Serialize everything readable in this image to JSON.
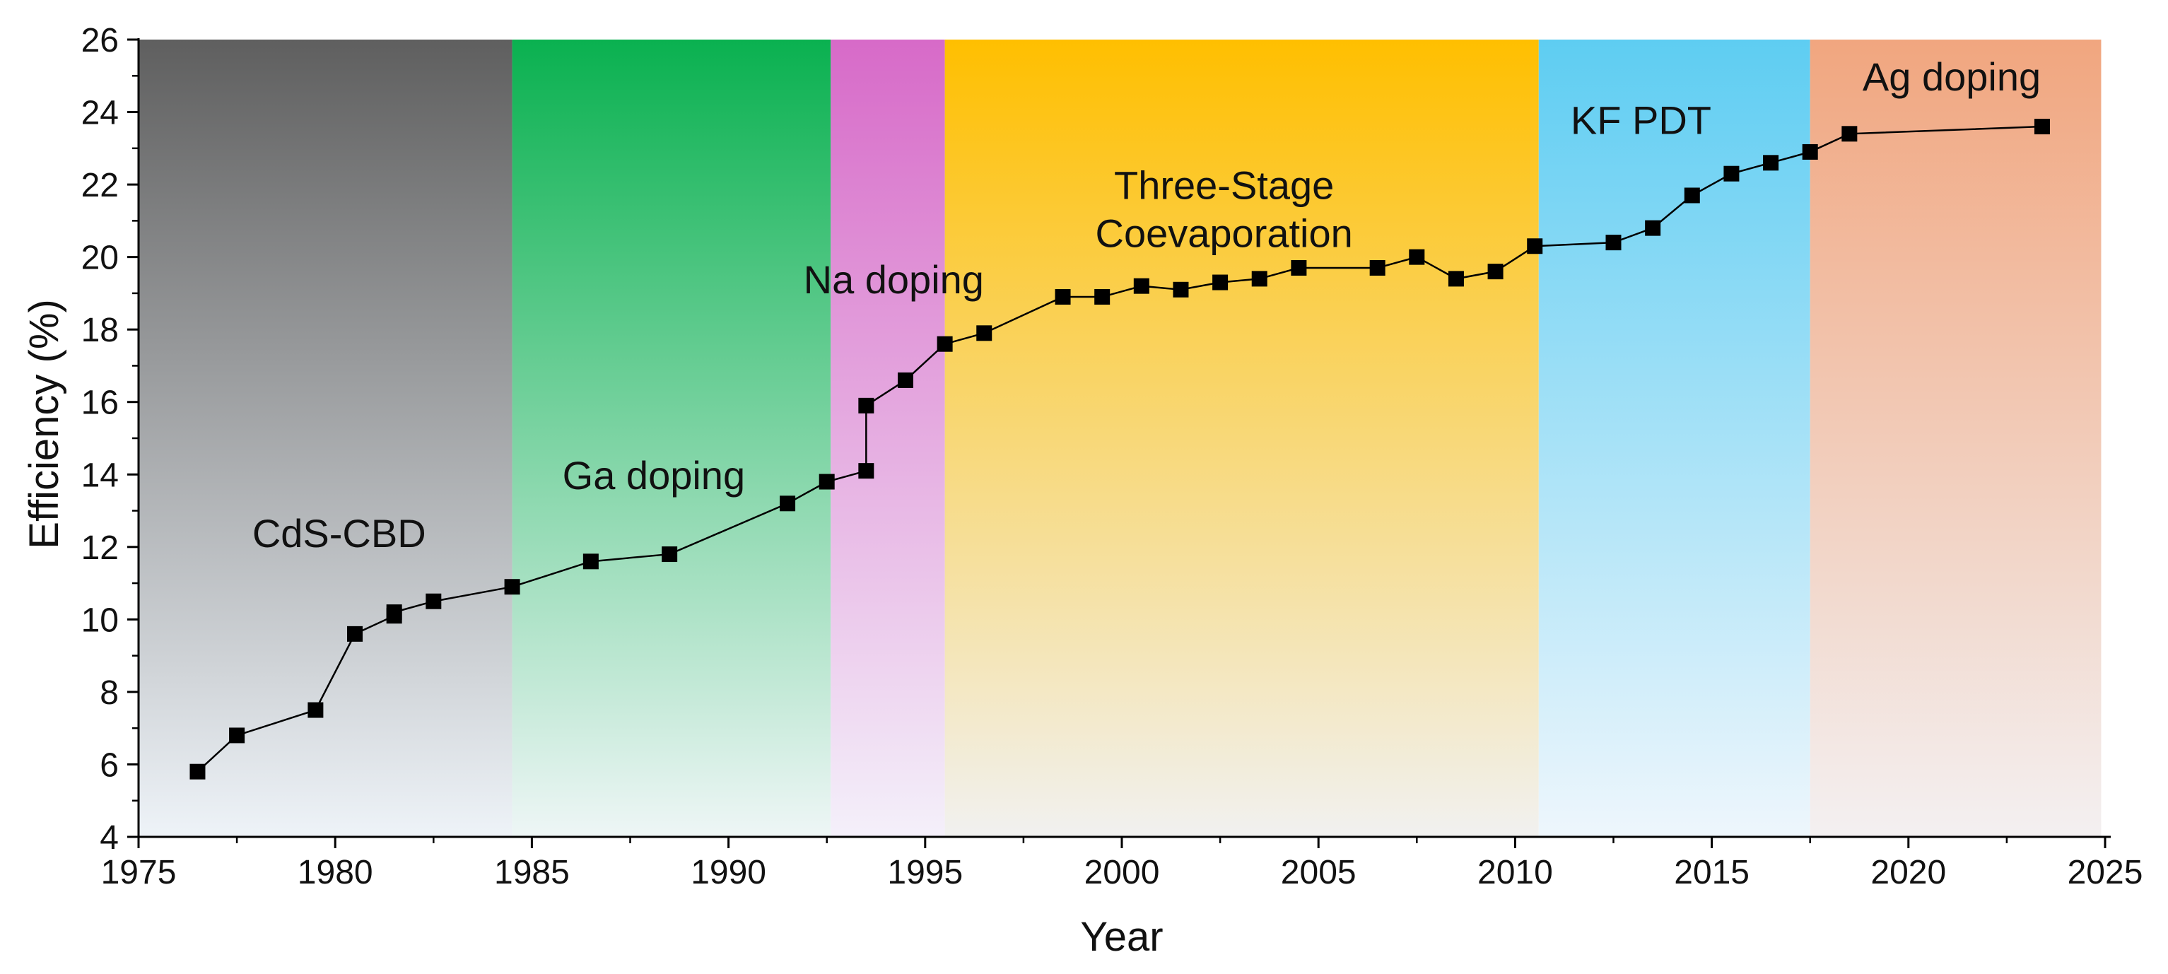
{
  "chart_data": {
    "type": "line",
    "xlabel": "Year",
    "ylabel": "Efficiency (%)",
    "xlim": [
      1975,
      2025
    ],
    "ylim": [
      4,
      26
    ],
    "x_ticks": [
      1975,
      1980,
      1985,
      1990,
      1995,
      2000,
      2005,
      2010,
      2015,
      2020,
      2025
    ],
    "y_ticks": [
      4,
      6,
      8,
      10,
      12,
      14,
      16,
      18,
      20,
      22,
      24,
      26
    ],
    "marker": "square",
    "line_color": "#000000",
    "regions": [
      {
        "label": "CdS-CBD",
        "x_start": 1975,
        "x_end": 1984.5,
        "color_top": "#5f5f5f",
        "color_bottom": "#eef3f8",
        "label_year": 1980.1,
        "label_eff": 12.0,
        "label_lines": [
          "CdS-CBD"
        ]
      },
      {
        "label": "Ga doping",
        "x_start": 1984.5,
        "x_end": 1992.6,
        "color_top": "#0ab150",
        "color_bottom": "#eef6f6",
        "label_year": 1988.1,
        "label_eff": 13.6,
        "label_lines": [
          "Ga doping"
        ]
      },
      {
        "label": "Na doping",
        "x_start": 1992.6,
        "x_end": 1995.5,
        "color_top": "#d76ac8",
        "color_bottom": "#f4f0fa",
        "label_year": 1994.2,
        "label_eff": 19.0,
        "label_lines": [
          "Na doping"
        ]
      },
      {
        "label": "Three-Stage Coevaporation",
        "x_start": 1995.5,
        "x_end": 2010.6,
        "color_top": "#ffbf00",
        "color_bottom": "#f1f1f0",
        "label_year": 2002.6,
        "label_eff": 21.6,
        "label_lines": [
          "Three-Stage",
          "Coevaporation"
        ]
      },
      {
        "label": "KF PDT",
        "x_start": 2010.6,
        "x_end": 2017.5,
        "color_top": "#5ecdf2",
        "color_bottom": "#eef6fc",
        "label_year": 2013.2,
        "label_eff": 23.4,
        "label_lines": [
          "KF PDT"
        ]
      },
      {
        "label": "Ag doping",
        "x_start": 2017.5,
        "x_end": 2024.9,
        "color_top": "#f1a67f",
        "color_bottom": "#f3f0f1",
        "label_year": 2021.1,
        "label_eff": 24.6,
        "label_lines": [
          "Ag doping"
        ]
      }
    ],
    "series": [
      {
        "name": "Efficiency",
        "x": [
          1976.5,
          1977.5,
          1979.5,
          1980.5,
          1981.5,
          1981.5,
          1982.5,
          1984.5,
          1986.5,
          1988.5,
          1991.5,
          1992.5,
          1993.5,
          1993.5,
          1994.5,
          1995.5,
          1996.5,
          1998.5,
          1999.5,
          2000.5,
          2001.5,
          2002.5,
          2003.5,
          2004.5,
          2006.5,
          2007.5,
          2008.5,
          2009.5,
          2010.5,
          2012.5,
          2013.5,
          2014.5,
          2015.5,
          2016.5,
          2017.5,
          2018.5,
          2023.4
        ],
        "values": [
          5.8,
          6.8,
          7.5,
          9.6,
          10.1,
          10.2,
          10.5,
          10.9,
          11.6,
          11.8,
          13.2,
          13.8,
          14.1,
          15.9,
          16.6,
          17.6,
          17.9,
          18.9,
          18.9,
          19.2,
          19.1,
          19.3,
          19.4,
          19.7,
          19.7,
          20.0,
          19.4,
          19.6,
          20.3,
          20.4,
          20.8,
          21.7,
          22.3,
          22.6,
          22.9,
          23.4,
          23.6
        ]
      }
    ]
  }
}
